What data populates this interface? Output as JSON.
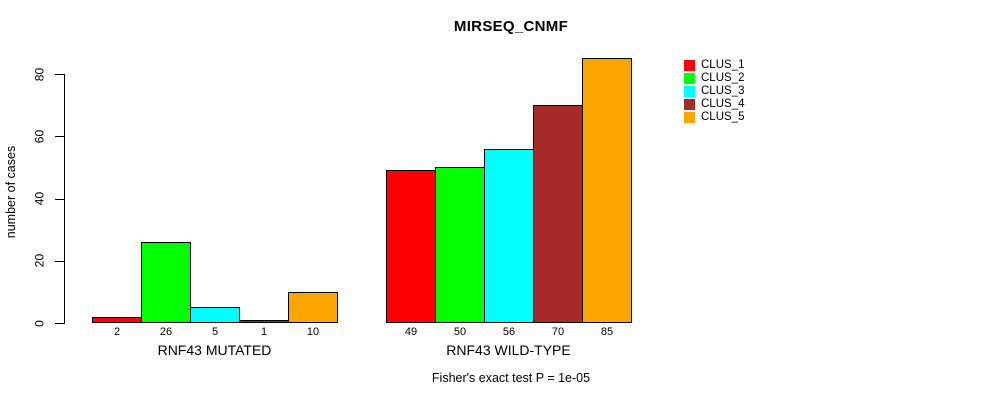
{
  "chart_data": {
    "type": "bar",
    "title": "MIRSEQ_CNMF",
    "ylabel": "number of cases",
    "xlabel": "",
    "subtitle": "Fisher's exact test P = 1e-05",
    "ylim": [
      0,
      85
    ],
    "yticks": [
      0,
      20,
      40,
      60,
      80
    ],
    "grid": false,
    "background": "#FFFFFF",
    "text_color": "#000000",
    "bar_border_color": "#000000",
    "legend": {
      "position": "right",
      "entries": [
        {
          "label": "CLUS_1",
          "color": "#FF0000"
        },
        {
          "label": "CLUS_2",
          "color": "#00FF00"
        },
        {
          "label": "CLUS_3",
          "color": "#00FFFF"
        },
        {
          "label": "CLUS_4",
          "color": "#A52A2A"
        },
        {
          "label": "CLUS_5",
          "color": "#FFA500"
        }
      ]
    },
    "series_colors": [
      "#FF0000",
      "#00FF00",
      "#00FFFF",
      "#A52A2A",
      "#FFA500"
    ],
    "groups": [
      {
        "label": "RNF43 MUTATED",
        "values": [
          2,
          26,
          5,
          1,
          10
        ],
        "bar_labels": [
          "2",
          "26",
          "5",
          "1",
          "10"
        ]
      },
      {
        "label": "RNF43 WILD-TYPE",
        "values": [
          49,
          50,
          56,
          70,
          85
        ],
        "bar_labels": [
          "49",
          "50",
          "56",
          "70",
          "85"
        ]
      }
    ]
  }
}
